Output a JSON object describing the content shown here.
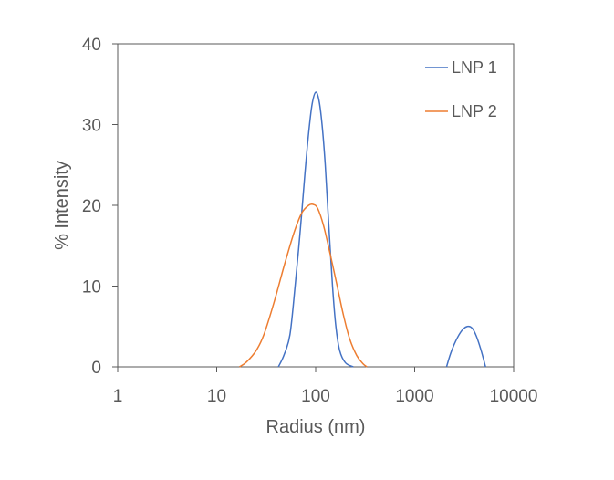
{
  "chart_data": {
    "type": "line",
    "title": "",
    "xlabel": "Radius (nm)",
    "ylabel": "% Intensity",
    "x_scale": "log",
    "xlim": [
      1,
      10000
    ],
    "ylim": [
      0,
      40
    ],
    "x_ticks": [
      1,
      10,
      100,
      1000,
      10000
    ],
    "x_tick_labels": [
      "1",
      "10",
      "100",
      "1000",
      "10000"
    ],
    "y_ticks": [
      0,
      10,
      20,
      30,
      40
    ],
    "y_tick_labels": [
      "0",
      "10",
      "20",
      "30",
      "40"
    ],
    "grid": false,
    "legend_position": "top-right",
    "series": [
      {
        "name": "LNP 1",
        "color": "#4472C4",
        "points": [
          [
            [
              42,
              0
            ],
            [
              48,
              1.5
            ],
            [
              55,
              4
            ],
            [
              62,
              10
            ],
            [
              70,
              17
            ],
            [
              78,
              24
            ],
            [
              85,
              29
            ],
            [
              92,
              32.5
            ],
            [
              100,
              34
            ],
            [
              108,
              33
            ],
            [
              116,
              30
            ],
            [
              125,
              25
            ],
            [
              135,
              18
            ],
            [
              148,
              10
            ],
            [
              160,
              5
            ],
            [
              175,
              2
            ],
            [
              200,
              0.5
            ],
            [
              240,
              0
            ]
          ],
          [
            [
              2100,
              0
            ],
            [
              2300,
              1.6
            ],
            [
              2600,
              3.2
            ],
            [
              3000,
              4.5
            ],
            [
              3400,
              5
            ],
            [
              3800,
              4.8
            ],
            [
              4200,
              3.8
            ],
            [
              4700,
              2
            ],
            [
              5200,
              0
            ]
          ]
        ]
      },
      {
        "name": "LNP 2",
        "color": "#ED7D31",
        "points": [
          [
            [
              17,
              0
            ],
            [
              20,
              0.6
            ],
            [
              25,
              2
            ],
            [
              30,
              4
            ],
            [
              38,
              8
            ],
            [
              48,
              12.5
            ],
            [
              60,
              16.5
            ],
            [
              72,
              19
            ],
            [
              85,
              20
            ],
            [
              95,
              20.1
            ],
            [
              105,
              19.6
            ],
            [
              120,
              17.5
            ],
            [
              140,
              14
            ],
            [
              165,
              10
            ],
            [
              190,
              6.5
            ],
            [
              220,
              3.5
            ],
            [
              260,
              1.4
            ],
            [
              300,
              0.4
            ],
            [
              330,
              0
            ]
          ]
        ]
      }
    ]
  }
}
